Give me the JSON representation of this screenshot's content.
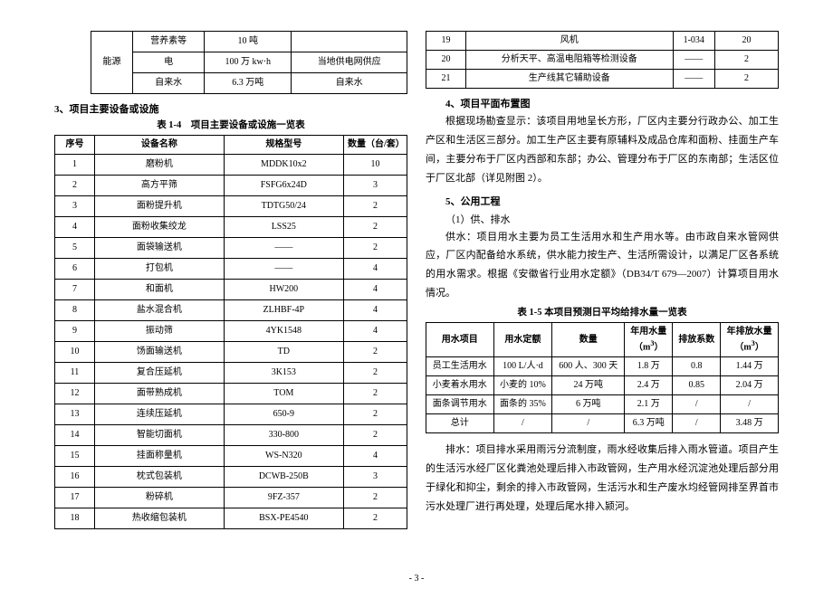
{
  "left": {
    "top_table": {
      "rows": [
        [
          "",
          "营养素等",
          "10 吨",
          ""
        ],
        [
          "能源",
          "电",
          "100 万 kw·h",
          "当地供电网供应"
        ],
        [
          "",
          "自来水",
          "6.3 万吨",
          "自来水"
        ]
      ]
    },
    "section3_title": "3、项目主要设备或设施",
    "table14_caption": "表 1-4　项目主要设备或设施一览表",
    "equip_headers": [
      "序号",
      "设备名称",
      "规格型号",
      "数量（台/套）"
    ],
    "equip_rows": [
      [
        "1",
        "磨粉机",
        "MDDK10x2",
        "10"
      ],
      [
        "2",
        "高方平筛",
        "FSFG6x24D",
        "3"
      ],
      [
        "3",
        "面粉提升机",
        "TDTG50/24",
        "2"
      ],
      [
        "4",
        "面粉收集绞龙",
        "LSS25",
        "2"
      ],
      [
        "5",
        "面袋输送机",
        "——",
        "2"
      ],
      [
        "6",
        "打包机",
        "——",
        "4"
      ],
      [
        "7",
        "和面机",
        "HW200",
        "4"
      ],
      [
        "8",
        "盐水混合机",
        "ZLHBF-4P",
        "4"
      ],
      [
        "9",
        "振动筛",
        "4YK1548",
        "4"
      ],
      [
        "10",
        "饧面输送机",
        "TD",
        "2"
      ],
      [
        "11",
        "复合压延机",
        "3K153",
        "2"
      ],
      [
        "12",
        "面带熟成机",
        "TOM",
        "2"
      ],
      [
        "13",
        "连续压延机",
        "650-9",
        "2"
      ],
      [
        "14",
        "智能切面机",
        "330-800",
        "2"
      ],
      [
        "15",
        "挂面称量机",
        "WS-N320",
        "4"
      ],
      [
        "16",
        "枕式包装机",
        "DCWB-250B",
        "3"
      ],
      [
        "17",
        "粉碎机",
        "9FZ-357",
        "2"
      ],
      [
        "18",
        "热收缩包装机",
        "BSX-PE4540",
        "2"
      ]
    ]
  },
  "right": {
    "top_rows": [
      [
        "19",
        "风机",
        "1-034",
        "20"
      ],
      [
        "20",
        "分析天平、高温电阻箱等检测设备",
        "——",
        "2"
      ],
      [
        "21",
        "生产线其它辅助设备",
        "——",
        "2"
      ]
    ],
    "section4_title": "4、项目平面布置图",
    "para4": "根据现场勘查显示：该项目用地呈长方形，厂区内主要分行政办公、加工生产区和生活区三部分。加工生产区主要有原辅料及成品仓库和面粉、挂面生产车间，主要分布于厂区内西部和东部；办公、管理分布于厂区的东南部；生活区位于厂区北部（详见附图 2）。",
    "section5_title": "5、公用工程",
    "sub5_1": "（1）供、排水",
    "para5a": "供水：项目用水主要为员工生活用水和生产用水等。由市政自来水管网供应，厂区内配备给水系统，供水能力按生产、生活所需设计，以满足厂区各系统的用水需求。根据《安徽省行业用水定额》（DB34/T 679—2007）计算项目用水情况。",
    "table15_caption": "表 1-5 本项目预测日平均给排水量一览表",
    "water_headers": [
      "用水项目",
      "用水定额",
      "数量",
      "年用水量（m³）",
      "排放系数",
      "年排放水量（m³）"
    ],
    "water_rows": [
      [
        "员工生活用水",
        "100 L/人·d",
        "600 人、300 天",
        "1.8 万",
        "0.8",
        "1.44 万"
      ],
      [
        "小麦着水用水",
        "小麦的 10%",
        "24 万吨",
        "2.4 万",
        "0.85",
        "2.04 万"
      ],
      [
        "面条调节用水",
        "面条的 35%",
        "6 万吨",
        "2.1 万",
        "/",
        "/"
      ],
      [
        "总计",
        "/",
        "/",
        "6.3 万吨",
        "/",
        "3.48 万"
      ]
    ],
    "para5b": "排水：项目排水采用雨污分流制度，雨水经收集后排入雨水管道。项目产生的生活污水经厂区化粪池处理后排入市政管网，生产用水经沉淀池处理后部分用于绿化和抑尘，剩余的排入市政管网，生活污水和生产废水均经管网排至界首市污水处理厂进行再处理，处理后尾水排入颍河。"
  },
  "page_number": "- 3 -"
}
